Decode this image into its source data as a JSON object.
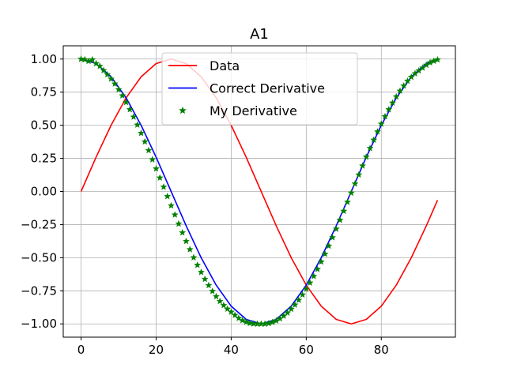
{
  "chart_data": {
    "type": "line",
    "title": "A1",
    "xlabel": "",
    "ylabel": "",
    "xlim": [
      -4.75,
      99.75
    ],
    "ylim": [
      -1.1,
      1.1
    ],
    "xticks": [
      0,
      20,
      40,
      60,
      80
    ],
    "xtick_labels": [
      "0",
      "20",
      "40",
      "60",
      "80"
    ],
    "yticks": [
      -1.0,
      -0.75,
      -0.5,
      -0.25,
      0.0,
      0.25,
      0.5,
      0.75,
      1.0
    ],
    "ytick_labels": [
      "−1.00",
      "−0.75",
      "−0.50",
      "−0.25",
      "0.00",
      "0.25",
      "0.50",
      "0.75",
      "1.00"
    ],
    "grid": true,
    "legend_position": "top-center",
    "colors": {
      "data": "#ff0000",
      "correct": "#0000ff",
      "mine": "#008000",
      "grid": "#b0b0b0"
    },
    "series": [
      {
        "name": "Data",
        "style": "line",
        "color": "#ff0000",
        "x": [
          0,
          4,
          8,
          12,
          16,
          20,
          24,
          28,
          32,
          36,
          40,
          44,
          48,
          52,
          56,
          60,
          64,
          68,
          72,
          76,
          80,
          84,
          88,
          92,
          95
        ],
        "y": [
          0,
          0.259,
          0.5,
          0.707,
          0.866,
          0.966,
          1,
          0.966,
          0.866,
          0.707,
          0.5,
          0.259,
          0,
          -0.259,
          -0.5,
          -0.707,
          -0.866,
          -0.966,
          -1,
          -0.966,
          -0.866,
          -0.707,
          -0.5,
          -0.259,
          -0.065
        ]
      },
      {
        "name": "Correct Derivative",
        "style": "line",
        "color": "#0000ff",
        "x": [
          0,
          4,
          8,
          12,
          16,
          20,
          24,
          28,
          32,
          36,
          40,
          44,
          48,
          52,
          56,
          60,
          64,
          68,
          72,
          76,
          80,
          84,
          88,
          92,
          95
        ],
        "y": [
          1,
          0.966,
          0.866,
          0.707,
          0.5,
          0.259,
          0,
          -0.259,
          -0.5,
          -0.707,
          -0.866,
          -0.966,
          -1,
          -0.966,
          -0.866,
          -0.707,
          -0.5,
          -0.259,
          0,
          0.259,
          0.5,
          0.707,
          0.866,
          0.966,
          0.998
        ]
      },
      {
        "name": "My Derivative",
        "style": "markers",
        "marker": "star",
        "color": "#008000",
        "x": [
          0,
          1,
          2,
          3,
          4,
          5,
          6,
          7,
          8,
          9,
          10,
          11,
          12,
          13,
          14,
          15,
          16,
          17,
          18,
          19,
          20,
          21,
          22,
          23,
          24,
          25,
          26,
          27,
          28,
          29,
          30,
          31,
          32,
          33,
          34,
          35,
          36,
          37,
          38,
          39,
          40,
          41,
          42,
          43,
          44,
          45,
          46,
          47,
          48,
          49,
          50,
          51,
          52,
          53,
          54,
          55,
          56,
          57,
          58,
          59,
          60,
          61,
          62,
          63,
          64,
          65,
          66,
          67,
          68,
          69,
          70,
          71,
          72,
          73,
          74,
          75,
          76,
          77,
          78,
          79,
          80,
          81,
          82,
          83,
          84,
          85,
          86,
          87,
          88,
          89,
          90,
          91,
          92,
          93,
          94,
          95
        ],
        "y": [
          1,
          0.996,
          0.984,
          0.995,
          0.966,
          0.946,
          0.914,
          0.883,
          0.85,
          0.813,
          0.77,
          0.724,
          0.673,
          0.619,
          0.563,
          0.503,
          0.44,
          0.376,
          0.31,
          0.241,
          0.172,
          0.103,
          0.034,
          -0.037,
          -0.107,
          -0.176,
          -0.244,
          -0.311,
          -0.376,
          -0.438,
          -0.499,
          -0.556,
          -0.61,
          -0.662,
          -0.709,
          -0.753,
          -0.793,
          -0.829,
          -0.86,
          -0.887,
          -0.91,
          -0.934,
          -0.957,
          -0.974,
          -0.986,
          -0.995,
          -0.999,
          -1,
          -1,
          -1,
          -0.996,
          -0.988,
          -0.976,
          -0.96,
          -0.94,
          -0.916,
          -0.888,
          -0.856,
          -0.82,
          -0.78,
          -0.737,
          -0.69,
          -0.64,
          -0.587,
          -0.531,
          -0.472,
          -0.411,
          -0.348,
          -0.283,
          -0.216,
          -0.148,
          -0.08,
          -0.011,
          0.058,
          0.126,
          0.194,
          0.261,
          0.326,
          0.389,
          0.451,
          0.51,
          0.566,
          0.619,
          0.669,
          0.716,
          0.759,
          0.798,
          0.834,
          0.864,
          0.89,
          0.912,
          0.933,
          0.955,
          0.973,
          0.985,
          0.995
        ]
      }
    ]
  }
}
